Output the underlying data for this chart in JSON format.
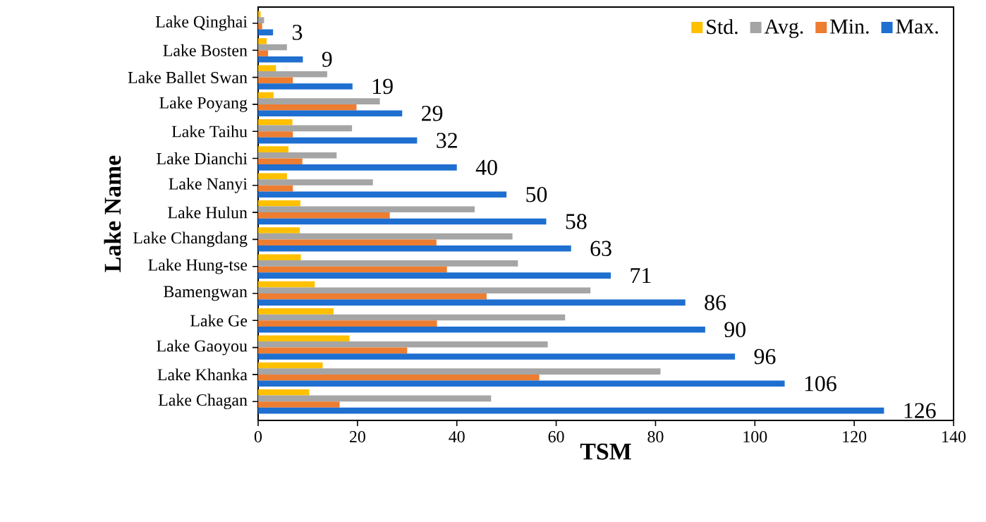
{
  "chart_data": {
    "type": "bar",
    "orientation": "horizontal",
    "xlabel": "TSM",
    "ylabel": "Lake Name",
    "categories": [
      "Lake Qinghai",
      "Lake Bosten",
      "Lake Ballet Swan",
      "Lake Poyang",
      "Lake Taihu",
      "Lake Dianchi",
      "Lake Nanyi",
      "Lake Hulun",
      "Lake Changdang",
      "Lake Hung-tse",
      "Bamengwan",
      "Lake Ge",
      "Lake Gaoyou",
      "Lake Khanka",
      "Lake Chagan"
    ],
    "series": [
      {
        "name": "Std.",
        "color": "#ffc000",
        "values": [
          0.5,
          1.7,
          3.6,
          3.1,
          6.9,
          6.1,
          5.8,
          8.5,
          8.4,
          8.6,
          11.4,
          15.2,
          18.4,
          13,
          10.3
        ]
      },
      {
        "name": "Avg.",
        "color": "#a5a5a5",
        "values": [
          1.2,
          5.8,
          13.9,
          24.5,
          18.9,
          15.8,
          23.1,
          43.6,
          51.2,
          52.3,
          66.9,
          61.8,
          58.3,
          81,
          46.9
        ]
      },
      {
        "name": "Min.",
        "color": "#ed7d31",
        "values": [
          0.8,
          2,
          7,
          19.8,
          7,
          8.9,
          7,
          26.5,
          35.9,
          38,
          46,
          36,
          30,
          56.6,
          16.4
        ]
      },
      {
        "name": "Max.",
        "color": "#1e6fd0",
        "values": [
          3,
          9,
          19,
          29,
          32,
          40,
          50,
          58,
          63,
          71,
          86,
          90,
          96,
          106,
          126
        ],
        "value_labels": [
          "3",
          "9",
          "19",
          "29",
          "32",
          "40",
          "50",
          "58",
          "63",
          "71",
          "86",
          "90",
          "96",
          "106",
          "126"
        ]
      }
    ],
    "xlim": [
      0,
      140
    ],
    "xticks": [
      0,
      20,
      40,
      60,
      80,
      100,
      120,
      140
    ],
    "legend": "top right"
  }
}
